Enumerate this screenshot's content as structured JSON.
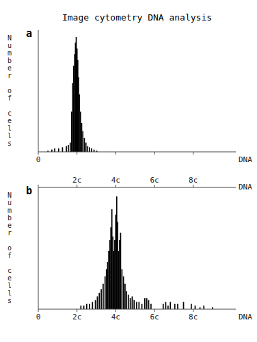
{
  "chart_data": [
    {
      "type": "bar",
      "title": "Image cytometry DNA analysis",
      "xlabel": "DNA",
      "ylabel": "Number of cells",
      "annotations": [
        "a"
      ],
      "x": [
        0.5,
        0.7,
        0.85,
        1.05,
        1.25,
        1.45,
        1.55,
        1.65,
        1.72,
        1.78,
        1.83,
        1.88,
        1.92,
        1.96,
        2.0,
        2.04,
        2.08,
        2.12,
        2.18,
        2.24,
        2.3,
        2.38,
        2.46,
        2.55,
        2.65,
        2.75,
        2.88,
        3.02
      ],
      "values": [
        1,
        2,
        3,
        3,
        4,
        5,
        6,
        8,
        35,
        60,
        75,
        85,
        95,
        100,
        90,
        80,
        65,
        50,
        35,
        25,
        18,
        12,
        8,
        5,
        4,
        3,
        2,
        1
      ],
      "color": "black",
      "xlim": [
        0,
        10.2
      ],
      "xticks": [
        0,
        {
          "value": 2,
          "label": null
        },
        {
          "value": 4,
          "label": null
        },
        {
          "value": 6,
          "label": null
        },
        {
          "value": 8,
          "label": null
        }
      ],
      "ylim": [
        0,
        106
      ],
      "grid": false,
      "tick_labels": "x"
    },
    {
      "type": "bar",
      "xlabel": "DNA",
      "ylabel": "Number of cells",
      "annotations": [
        "b"
      ],
      "x": [
        2.2,
        2.35,
        2.5,
        2.65,
        2.8,
        2.95,
        3.05,
        3.15,
        3.25,
        3.35,
        3.45,
        3.52,
        3.58,
        3.64,
        3.7,
        3.75,
        3.8,
        3.85,
        3.9,
        3.95,
        4.0,
        4.05,
        4.1,
        4.15,
        4.2,
        4.25,
        4.32,
        4.4,
        4.48,
        4.56,
        4.65,
        4.75,
        4.85,
        4.95,
        5.08,
        5.2,
        5.35,
        5.5,
        5.6,
        5.7,
        5.82,
        6.45,
        6.58,
        6.7,
        6.82,
        7.05,
        7.2,
        7.5,
        7.9,
        8.1,
        8.35,
        8.55,
        9.0
      ],
      "values": [
        2,
        2,
        3,
        3,
        4,
        5,
        7,
        9,
        11,
        14,
        18,
        22,
        26,
        32,
        38,
        45,
        55,
        40,
        32,
        38,
        52,
        62,
        48,
        32,
        38,
        42,
        22,
        18,
        14,
        10,
        8,
        6,
        7,
        5,
        4,
        4,
        3,
        6,
        6,
        5,
        3,
        3,
        4,
        2,
        4,
        3,
        3,
        4,
        3,
        2,
        1,
        2,
        1
      ],
      "color": "black",
      "xlim": [
        0,
        10.2
      ],
      "xticks": [
        0,
        {
          "value": 2,
          "label": "2c"
        },
        {
          "value": 4,
          "label": "4c"
        },
        {
          "value": 6,
          "label": "6c"
        },
        {
          "value": 8,
          "label": "8c"
        }
      ],
      "x2lim": [
        0,
        10.2
      ],
      "x2ticks": [
        {
          "value": 0,
          "label": null
        },
        {
          "value": 2,
          "label": "2c"
        },
        {
          "value": 4,
          "label": "4c"
        },
        {
          "value": 6,
          "label": "6c"
        },
        {
          "value": 8,
          "label": "8c"
        }
      ],
      "ylim": [
        0,
        66.96
      ],
      "grid": false,
      "tick_labels": "x"
    }
  ]
}
